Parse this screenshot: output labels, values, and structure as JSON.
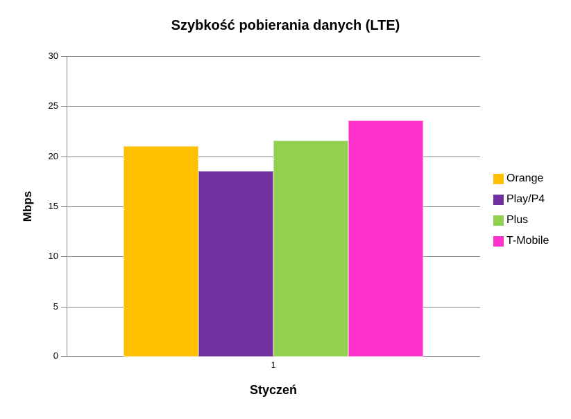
{
  "chart_data": {
    "type": "bar",
    "title": "Szybkość pobierania danych (LTE)",
    "categories": [
      "1"
    ],
    "series": [
      {
        "name": "Orange",
        "values": [
          21.0
        ],
        "color": "#FFC000"
      },
      {
        "name": "Play/P4",
        "values": [
          18.5
        ],
        "color": "#7030A0"
      },
      {
        "name": "Plus",
        "values": [
          21.6
        ],
        "color": "#92D050"
      },
      {
        "name": "T-Mobile",
        "values": [
          23.6
        ],
        "color": "#FF33CC"
      }
    ],
    "xlabel": "Styczeń",
    "ylabel": "Mbps",
    "ylim": [
      0,
      30
    ],
    "ytick_step": 5,
    "grid": true,
    "legend_position": "right",
    "gridline_color": "#878787",
    "background_color": "#ffffff"
  }
}
